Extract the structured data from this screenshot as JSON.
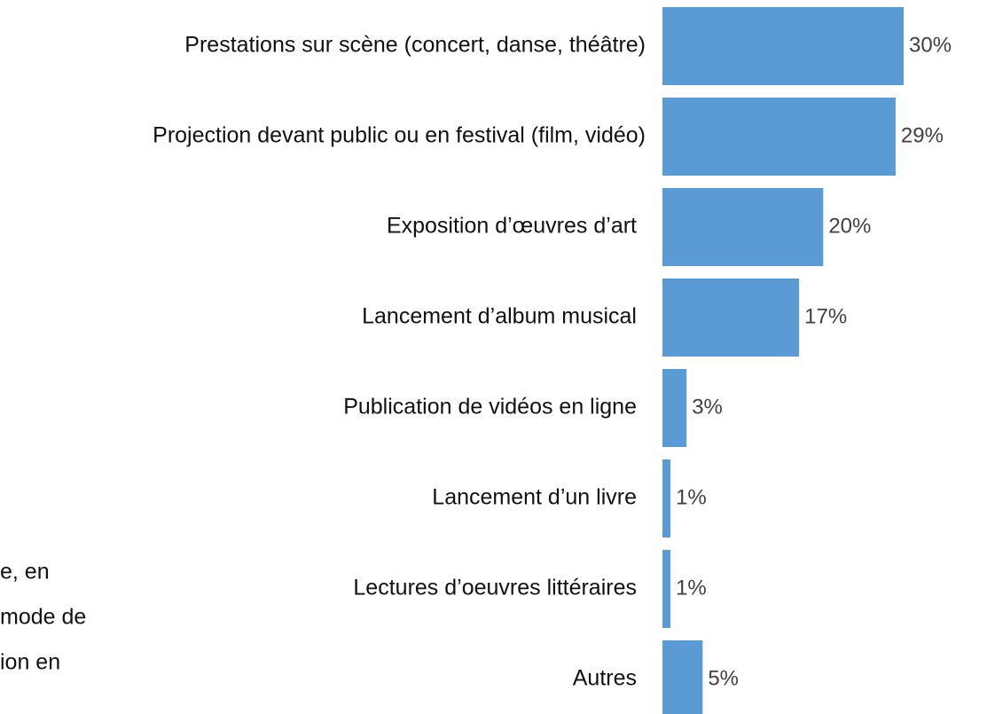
{
  "chart_data": {
    "type": "barh",
    "categories": [
      "Prestations sur scène (concert, danse, théâtre)",
      "Projection devant public ou en festival (film, vidéo)",
      "Exposition d’œuvres d’art",
      "Lancement d’album musical",
      "Publication de vidéos en ligne",
      "Lancement d’un livre",
      "Lectures d’oeuvres littéraires",
      "Autres"
    ],
    "values": [
      30,
      29,
      20,
      17,
      3,
      1,
      1,
      5
    ],
    "value_labels": [
      "30%",
      "29%",
      "20%",
      "17%",
      "3%",
      "1%",
      "1%",
      "5%"
    ],
    "color": "#5b9bd5",
    "xlim": [
      0,
      30
    ],
    "annotations": [
      "e, en",
      "mode de",
      "ion en"
    ]
  }
}
